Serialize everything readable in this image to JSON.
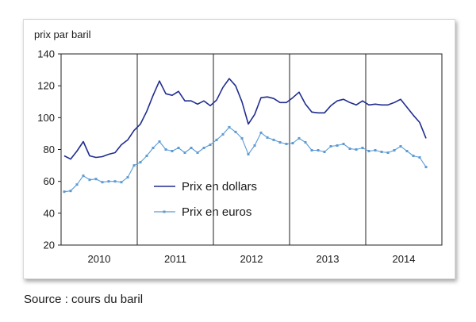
{
  "source_note": "Source : cours du baril",
  "chart_data": {
    "type": "line",
    "title": "",
    "ylabel": "prix par baril",
    "xlabel": "",
    "ylim": [
      20,
      140
    ],
    "yticks": [
      20,
      40,
      60,
      80,
      100,
      120,
      140
    ],
    "grid": false,
    "legend": "center-left",
    "x_period_labels": [
      "2010",
      "2011",
      "2012",
      "2013",
      "2014"
    ],
    "x_start": "2010-01",
    "x_end": "2014-10",
    "series": [
      {
        "name": "Prix en dollars",
        "color": "#1f2d8f",
        "markers": false,
        "x": [
          "2010-01",
          "2010-02",
          "2010-03",
          "2010-04",
          "2010-05",
          "2010-06",
          "2010-07",
          "2010-08",
          "2010-09",
          "2010-10",
          "2010-11",
          "2010-12",
          "2011-01",
          "2011-02",
          "2011-03",
          "2011-04",
          "2011-05",
          "2011-06",
          "2011-07",
          "2011-08",
          "2011-09",
          "2011-10",
          "2011-11",
          "2011-12",
          "2012-01",
          "2012-02",
          "2012-03",
          "2012-04",
          "2012-05",
          "2012-06",
          "2012-07",
          "2012-08",
          "2012-09",
          "2012-10",
          "2012-11",
          "2012-12",
          "2013-01",
          "2013-02",
          "2013-03",
          "2013-04",
          "2013-05",
          "2013-06",
          "2013-07",
          "2013-08",
          "2013-09",
          "2013-10",
          "2013-11",
          "2013-12",
          "2014-01",
          "2014-02",
          "2014-03",
          "2014-04",
          "2014-05",
          "2014-06",
          "2014-07",
          "2014-08",
          "2014-09",
          "2014-10"
        ],
        "values": [
          76,
          74,
          79,
          85,
          76,
          75,
          75.5,
          77,
          78,
          83,
          86,
          92,
          96,
          104,
          114,
          123,
          115,
          114,
          116.5,
          110.5,
          110.5,
          108.5,
          110.5,
          107.5,
          111,
          119,
          124.5,
          120,
          110,
          96,
          102,
          112.5,
          113,
          112,
          109.5,
          109.5,
          112.5,
          116,
          108.5,
          103.5,
          103,
          103,
          107.5,
          110.5,
          111.5,
          109.5,
          108,
          110.5,
          108,
          108.5,
          108,
          108,
          109.5,
          111.5,
          106.5,
          101.5,
          97,
          87
        ]
      },
      {
        "name": "Prix en euros",
        "color": "#5b9bd5",
        "markers": true,
        "x": [
          "2010-01",
          "2010-02",
          "2010-03",
          "2010-04",
          "2010-05",
          "2010-06",
          "2010-07",
          "2010-08",
          "2010-09",
          "2010-10",
          "2010-11",
          "2010-12",
          "2011-01",
          "2011-02",
          "2011-03",
          "2011-04",
          "2011-05",
          "2011-06",
          "2011-07",
          "2011-08",
          "2011-09",
          "2011-10",
          "2011-11",
          "2011-12",
          "2012-01",
          "2012-02",
          "2012-03",
          "2012-04",
          "2012-05",
          "2012-06",
          "2012-07",
          "2012-08",
          "2012-09",
          "2012-10",
          "2012-11",
          "2012-12",
          "2013-01",
          "2013-02",
          "2013-03",
          "2013-04",
          "2013-05",
          "2013-06",
          "2013-07",
          "2013-08",
          "2013-09",
          "2013-10",
          "2013-11",
          "2013-12",
          "2014-01",
          "2014-02",
          "2014-03",
          "2014-04",
          "2014-05",
          "2014-06",
          "2014-07",
          "2014-08",
          "2014-09",
          "2014-10"
        ],
        "values": [
          53.5,
          54,
          58,
          63.5,
          61,
          61.5,
          59.5,
          60,
          60,
          59.5,
          62.5,
          70,
          72,
          76,
          81,
          85,
          80,
          79,
          81,
          78,
          81,
          78,
          81,
          83,
          86,
          89.5,
          94,
          91,
          87,
          77,
          82.5,
          90.5,
          87.5,
          86,
          84.5,
          83.5,
          84,
          87,
          84.5,
          79.5,
          79.5,
          78.5,
          82,
          82.5,
          83.5,
          80.5,
          80,
          81,
          79,
          79.5,
          78.5,
          78,
          79.5,
          82,
          79,
          76,
          75,
          69
        ]
      }
    ]
  }
}
